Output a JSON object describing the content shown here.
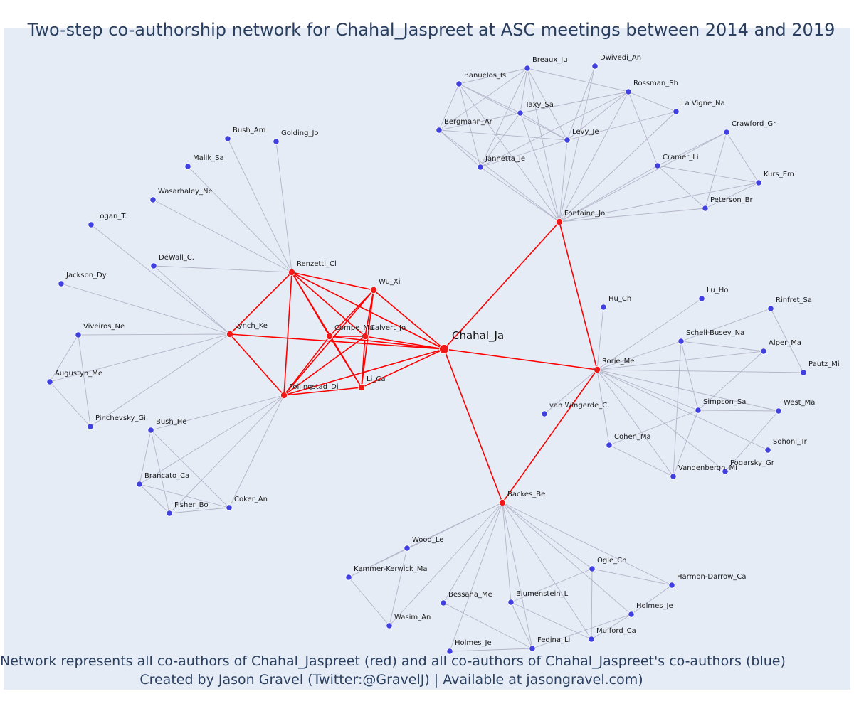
{
  "title": "Two-step co-authorship network for Chahal_Jaspreet at ASC meetings between 2014 and 2019",
  "caption": {
    "line1": "Network represents all co-authors of Chahal_Jaspreet (red) and all co-authors of Chahal_Jaspreet's co-authors (blue)",
    "line2": "Created by Jason Gravel (Twitter:@GravelJ) | Available at jasongravel.com)"
  },
  "colors": {
    "background": "#e5ecf6",
    "ego_edge": "#ff0000",
    "other_edge": "#b4b4c8",
    "first_step_node": "#f21818",
    "second_step_node": "#4040e0",
    "node_outline": "#ffffff"
  },
  "ego": {
    "id": "Chahal_Ja",
    "label": "Chahal_Ja"
  },
  "nodes": [
    {
      "id": "Chahal_Ja",
      "label": "",
      "group": "ego"
    },
    {
      "id": "Fontaine_Jo",
      "label": "Fontaine_Jo",
      "group": "first"
    },
    {
      "id": "Rorie_Me",
      "label": "Rorie_Me",
      "group": "first"
    },
    {
      "id": "Backes_Be",
      "label": "Backes_Be",
      "group": "first"
    },
    {
      "id": "Renzetti_Cl",
      "label": "Renzetti_Cl",
      "group": "first"
    },
    {
      "id": "Wu_Xi",
      "label": "Wu_Xi",
      "group": "first"
    },
    {
      "id": "Lynch_Ke",
      "label": "Lynch_Ke",
      "group": "first"
    },
    {
      "id": "Compe_Ma",
      "label": "Compe_Ma",
      "group": "first"
    },
    {
      "id": "Calvert_Jo",
      "label": "Calvert_Jo",
      "group": "first"
    },
    {
      "id": "Follingstad_Di",
      "label": "Follingstad_Di",
      "group": "first"
    },
    {
      "id": "Li_Ca",
      "label": "Li_Ca",
      "group": "first"
    },
    {
      "id": "Breaux_Ju",
      "label": "Breaux_Ju",
      "group": "second"
    },
    {
      "id": "Dwivedi_An",
      "label": "Dwivedi_An",
      "group": "second"
    },
    {
      "id": "Banuelos_Is",
      "label": "Banuelos_Is",
      "group": "second"
    },
    {
      "id": "Rossman_Sh",
      "label": "Rossman_Sh",
      "group": "second"
    },
    {
      "id": "La_Vigne_Na",
      "label": "La Vigne_Na",
      "group": "second"
    },
    {
      "id": "Taxy_Sa",
      "label": "Taxy_Sa",
      "group": "second"
    },
    {
      "id": "Bergmann_Ar",
      "label": "Bergmann_Ar",
      "group": "second"
    },
    {
      "id": "Levy_Je",
      "label": "Levy_Je",
      "group": "second"
    },
    {
      "id": "Crawford_Gr",
      "label": "Crawford_Gr",
      "group": "second"
    },
    {
      "id": "Jannetta_Je",
      "label": "Jannetta_Je",
      "group": "second"
    },
    {
      "id": "Cramer_Li",
      "label": "Cramer_Li",
      "group": "second"
    },
    {
      "id": "Kurs_Em",
      "label": "Kurs_Em",
      "group": "second"
    },
    {
      "id": "Peterson_Br",
      "label": "Peterson_Br",
      "group": "second"
    },
    {
      "id": "Bush_Am",
      "label": "Bush_Am",
      "group": "second"
    },
    {
      "id": "Golding_Jo",
      "label": "Golding_Jo",
      "group": "second"
    },
    {
      "id": "Malik_Sa",
      "label": "Malik_Sa",
      "group": "second"
    },
    {
      "id": "Wasarhaley_Ne",
      "label": "Wasarhaley_Ne",
      "group": "second"
    },
    {
      "id": "Logan_T",
      "label": "Logan_T.",
      "group": "second"
    },
    {
      "id": "DeWall_C",
      "label": "DeWall_C.",
      "group": "second"
    },
    {
      "id": "Jackson_Dy",
      "label": "Jackson_Dy",
      "group": "second"
    },
    {
      "id": "Viveiros_Ne",
      "label": "Viveiros_Ne",
      "group": "second"
    },
    {
      "id": "Augustyn_Me",
      "label": "Augustyn_Me",
      "group": "second"
    },
    {
      "id": "Pinchevsky_Gi",
      "label": "Pinchevsky_Gi",
      "group": "second"
    },
    {
      "id": "Bush_He",
      "label": "Bush_He",
      "group": "second"
    },
    {
      "id": "Brancato_Ca",
      "label": "Brancato_Ca",
      "group": "second"
    },
    {
      "id": "Fisher_Bo",
      "label": "Fisher_Bo",
      "group": "second"
    },
    {
      "id": "Coker_An",
      "label": "Coker_An",
      "group": "second"
    },
    {
      "id": "Hu_Ch",
      "label": "Hu_Ch",
      "group": "second"
    },
    {
      "id": "Lu_Ho",
      "label": "Lu_Ho",
      "group": "second"
    },
    {
      "id": "Rinfret_Sa",
      "label": "Rinfret_Sa",
      "group": "second"
    },
    {
      "id": "Schell_Busey_Na",
      "label": "Schell-Busey_Na",
      "group": "second"
    },
    {
      "id": "Alper_Ma",
      "label": "Alper_Ma",
      "group": "second"
    },
    {
      "id": "Pautz_Mi",
      "label": "Pautz_Mi",
      "group": "second"
    },
    {
      "id": "van_Wingerde_C",
      "label": "van Wingerde_C.",
      "group": "second"
    },
    {
      "id": "Simpson_Sa",
      "label": "Simpson_Sa",
      "group": "second"
    },
    {
      "id": "West_Ma",
      "label": "West_Ma",
      "group": "second"
    },
    {
      "id": "Cohen_Ma",
      "label": "Cohen_Ma",
      "group": "second"
    },
    {
      "id": "Sohoni_Tr",
      "label": "Sohoni_Tr",
      "group": "second"
    },
    {
      "id": "Pogarsky_Gr",
      "label": "Pogarsky_Gr",
      "group": "second"
    },
    {
      "id": "Vandenbergh_Mi",
      "label": "Vandenbergh_Mi",
      "group": "second"
    },
    {
      "id": "Wood_Le",
      "label": "Wood_Le",
      "group": "second"
    },
    {
      "id": "Kammer_Kerwick_Ma",
      "label": "Kammer-Kerwick_Ma",
      "group": "second"
    },
    {
      "id": "Ogle_Ch",
      "label": "Ogle_Ch",
      "group": "second"
    },
    {
      "id": "Harmon_Darrow_Ca",
      "label": "Harmon-Darrow_Ca",
      "group": "second"
    },
    {
      "id": "Bessaha_Me",
      "label": "Bessaha_Me",
      "group": "second"
    },
    {
      "id": "Blumenstein_Li",
      "label": "Blumenstein_Li",
      "group": "second"
    },
    {
      "id": "Holmes_Je_1",
      "label": "Holmes_Je",
      "group": "second"
    },
    {
      "id": "Wasim_An",
      "label": "Wasim_An",
      "group": "second"
    },
    {
      "id": "Mulford_Ca",
      "label": "Mulford_Ca",
      "group": "second"
    },
    {
      "id": "Fedina_Li",
      "label": "Fedina_Li",
      "group": "second"
    },
    {
      "id": "Holmes_Je_2",
      "label": "Holmes_Je",
      "group": "second"
    }
  ],
  "edges": [
    [
      "Chahal_Ja",
      "Fontaine_Jo"
    ],
    [
      "Chahal_Ja",
      "Rorie_Me"
    ],
    [
      "Chahal_Ja",
      "Backes_Be"
    ],
    [
      "Chahal_Ja",
      "Renzetti_Cl"
    ],
    [
      "Chahal_Ja",
      "Wu_Xi"
    ],
    [
      "Chahal_Ja",
      "Lynch_Ke"
    ],
    [
      "Chahal_Ja",
      "Compe_Ma"
    ],
    [
      "Chahal_Ja",
      "Calvert_Jo"
    ],
    [
      "Chahal_Ja",
      "Follingstad_Di"
    ],
    [
      "Chahal_Ja",
      "Li_Ca"
    ],
    [
      "Fontaine_Jo",
      "Rorie_Me"
    ],
    [
      "Rorie_Me",
      "Backes_Be"
    ],
    [
      "Renzetti_Cl",
      "Wu_Xi"
    ],
    [
      "Renzetti_Cl",
      "Lynch_Ke"
    ],
    [
      "Renzetti_Cl",
      "Compe_Ma"
    ],
    [
      "Renzetti_Cl",
      "Calvert_Jo"
    ],
    [
      "Renzetti_Cl",
      "Follingstad_Di"
    ],
    [
      "Renzetti_Cl",
      "Li_Ca"
    ],
    [
      "Wu_Xi",
      "Compe_Ma"
    ],
    [
      "Wu_Xi",
      "Calvert_Jo"
    ],
    [
      "Wu_Xi",
      "Follingstad_Di"
    ],
    [
      "Wu_Xi",
      "Li_Ca"
    ],
    [
      "Lynch_Ke",
      "Follingstad_Di"
    ],
    [
      "Compe_Ma",
      "Calvert_Jo"
    ],
    [
      "Compe_Ma",
      "Follingstad_Di"
    ],
    [
      "Compe_Ma",
      "Li_Ca"
    ],
    [
      "Calvert_Jo",
      "Follingstad_Di"
    ],
    [
      "Calvert_Jo",
      "Li_Ca"
    ],
    [
      "Follingstad_Di",
      "Li_Ca"
    ],
    [
      "Fontaine_Jo",
      "Breaux_Ju"
    ],
    [
      "Fontaine_Jo",
      "Dwivedi_An"
    ],
    [
      "Fontaine_Jo",
      "Banuelos_Is"
    ],
    [
      "Fontaine_Jo",
      "Rossman_Sh"
    ],
    [
      "Fontaine_Jo",
      "La_Vigne_Na"
    ],
    [
      "Fontaine_Jo",
      "Taxy_Sa"
    ],
    [
      "Fontaine_Jo",
      "Bergmann_Ar"
    ],
    [
      "Fontaine_Jo",
      "Levy_Je"
    ],
    [
      "Fontaine_Jo",
      "Crawford_Gr"
    ],
    [
      "Fontaine_Jo",
      "Jannetta_Je"
    ],
    [
      "Fontaine_Jo",
      "Cramer_Li"
    ],
    [
      "Fontaine_Jo",
      "Kurs_Em"
    ],
    [
      "Fontaine_Jo",
      "Peterson_Br"
    ],
    [
      "Banuelos_Is",
      "Breaux_Ju"
    ],
    [
      "Banuelos_Is",
      "Taxy_Sa"
    ],
    [
      "Banuelos_Is",
      "Levy_Je"
    ],
    [
      "Banuelos_Is",
      "Bergmann_Ar"
    ],
    [
      "Banuelos_Is",
      "Jannetta_Je"
    ],
    [
      "Breaux_Ju",
      "Taxy_Sa"
    ],
    [
      "Breaux_Ju",
      "Levy_Je"
    ],
    [
      "Breaux_Ju",
      "Jannetta_Je"
    ],
    [
      "Breaux_Ju",
      "Rossman_Sh"
    ],
    [
      "Breaux_Ju",
      "Bergmann_Ar"
    ],
    [
      "Taxy_Sa",
      "Levy_Je"
    ],
    [
      "Taxy_Sa",
      "Jannetta_Je"
    ],
    [
      "Taxy_Sa",
      "Bergmann_Ar"
    ],
    [
      "Taxy_Sa",
      "Rossman_Sh"
    ],
    [
      "Bergmann_Ar",
      "Levy_Je"
    ],
    [
      "Bergmann_Ar",
      "Jannetta_Je"
    ],
    [
      "Levy_Je",
      "Jannetta_Je"
    ],
    [
      "Levy_Je",
      "Rossman_Sh"
    ],
    [
      "Levy_Je",
      "La_Vigne_Na"
    ],
    [
      "Levy_Je",
      "Dwivedi_An"
    ],
    [
      "Rossman_Sh",
      "La_Vigne_Na"
    ],
    [
      "Rossman_Sh",
      "Cramer_Li"
    ],
    [
      "Rossman_Sh",
      "Jannetta_Je"
    ],
    [
      "Cramer_Li",
      "Crawford_Gr"
    ],
    [
      "Cramer_Li",
      "Kurs_Em"
    ],
    [
      "Cramer_Li",
      "Peterson_Br"
    ],
    [
      "Crawford_Gr",
      "Kurs_Em"
    ],
    [
      "Crawford_Gr",
      "Peterson_Br"
    ],
    [
      "Kurs_Em",
      "Peterson_Br"
    ],
    [
      "Renzetti_Cl",
      "Bush_Am"
    ],
    [
      "Renzetti_Cl",
      "Golding_Jo"
    ],
    [
      "Renzetti_Cl",
      "Malik_Sa"
    ],
    [
      "Renzetti_Cl",
      "Wasarhaley_Ne"
    ],
    [
      "Renzetti_Cl",
      "DeWall_C"
    ],
    [
      "Lynch_Ke",
      "Logan_T"
    ],
    [
      "Lynch_Ke",
      "DeWall_C"
    ],
    [
      "Lynch_Ke",
      "Jackson_Dy"
    ],
    [
      "Lynch_Ke",
      "Viveiros_Ne"
    ],
    [
      "Lynch_Ke",
      "Augustyn_Me"
    ],
    [
      "Lynch_Ke",
      "Pinchevsky_Gi"
    ],
    [
      "Viveiros_Ne",
      "Augustyn_Me"
    ],
    [
      "Viveiros_Ne",
      "Pinchevsky_Gi"
    ],
    [
      "Augustyn_Me",
      "Pinchevsky_Gi"
    ],
    [
      "Follingstad_Di",
      "Bush_He"
    ],
    [
      "Follingstad_Di",
      "Brancato_Ca"
    ],
    [
      "Follingstad_Di",
      "Fisher_Bo"
    ],
    [
      "Follingstad_Di",
      "Coker_An"
    ],
    [
      "Bush_He",
      "Brancato_Ca"
    ],
    [
      "Bush_He",
      "Fisher_Bo"
    ],
    [
      "Bush_He",
      "Coker_An"
    ],
    [
      "Brancato_Ca",
      "Fisher_Bo"
    ],
    [
      "Brancato_Ca",
      "Coker_An"
    ],
    [
      "Fisher_Bo",
      "Coker_An"
    ],
    [
      "Rorie_Me",
      "Hu_Ch"
    ],
    [
      "Rorie_Me",
      "Lu_Ho"
    ],
    [
      "Rorie_Me",
      "Schell_Busey_Na"
    ],
    [
      "Rorie_Me",
      "Alper_Ma"
    ],
    [
      "Rorie_Me",
      "Pautz_Mi"
    ],
    [
      "Rorie_Me",
      "van_Wingerde_C"
    ],
    [
      "Rorie_Me",
      "Simpson_Sa"
    ],
    [
      "Rorie_Me",
      "West_Ma"
    ],
    [
      "Rorie_Me",
      "Cohen_Ma"
    ],
    [
      "Rorie_Me",
      "Sohoni_Tr"
    ],
    [
      "Rorie_Me",
      "Pogarsky_Gr"
    ],
    [
      "Rorie_Me",
      "Vandenbergh_Mi"
    ],
    [
      "Rinfret_Sa",
      "Schell_Busey_Na"
    ],
    [
      "Rinfret_Sa",
      "Pautz_Mi"
    ],
    [
      "Schell_Busey_Na",
      "Alper_Ma"
    ],
    [
      "Schell_Busey_Na",
      "Simpson_Sa"
    ],
    [
      "Schell_Busey_Na",
      "Vandenbergh_Mi"
    ],
    [
      "Alper_Ma",
      "Simpson_Sa"
    ],
    [
      "Simpson_Sa",
      "Cohen_Ma"
    ],
    [
      "Simpson_Sa",
      "Vandenbergh_Mi"
    ],
    [
      "Simpson_Sa",
      "West_Ma"
    ],
    [
      "Cohen_Ma",
      "Vandenbergh_Mi"
    ],
    [
      "West_Ma",
      "Pogarsky_Gr"
    ],
    [
      "Backes_Be",
      "Wood_Le"
    ],
    [
      "Backes_Be",
      "Kammer_Kerwick_Ma"
    ],
    [
      "Backes_Be",
      "Ogle_Ch"
    ],
    [
      "Backes_Be",
      "Harmon_Darrow_Ca"
    ],
    [
      "Backes_Be",
      "Bessaha_Me"
    ],
    [
      "Backes_Be",
      "Blumenstein_Li"
    ],
    [
      "Backes_Be",
      "Holmes_Je_1"
    ],
    [
      "Backes_Be",
      "Wasim_An"
    ],
    [
      "Backes_Be",
      "Mulford_Ca"
    ],
    [
      "Backes_Be",
      "Fedina_Li"
    ],
    [
      "Backes_Be",
      "Holmes_Je_2"
    ],
    [
      "Wood_Le",
      "Kammer_Kerwick_Ma"
    ],
    [
      "Wood_Le",
      "Wasim_An"
    ],
    [
      "Kammer_Kerwick_Ma",
      "Wasim_An"
    ],
    [
      "Ogle_Ch",
      "Harmon_Darrow_Ca"
    ],
    [
      "Ogle_Ch",
      "Blumenstein_Li"
    ],
    [
      "Ogle_Ch",
      "Mulford_Ca"
    ],
    [
      "Harmon_Darrow_Ca",
      "Holmes_Je_1"
    ],
    [
      "Holmes_Je_1",
      "Mulford_Ca"
    ],
    [
      "Holmes_Je_1",
      "Fedina_Li"
    ],
    [
      "Blumenstein_Li",
      "Mulford_Ca"
    ],
    [
      "Blumenstein_Li",
      "Fedina_Li"
    ],
    [
      "Holmes_Je_2",
      "Fedina_Li"
    ],
    [
      "Bessaha_Me",
      "Fedina_Li"
    ]
  ]
}
